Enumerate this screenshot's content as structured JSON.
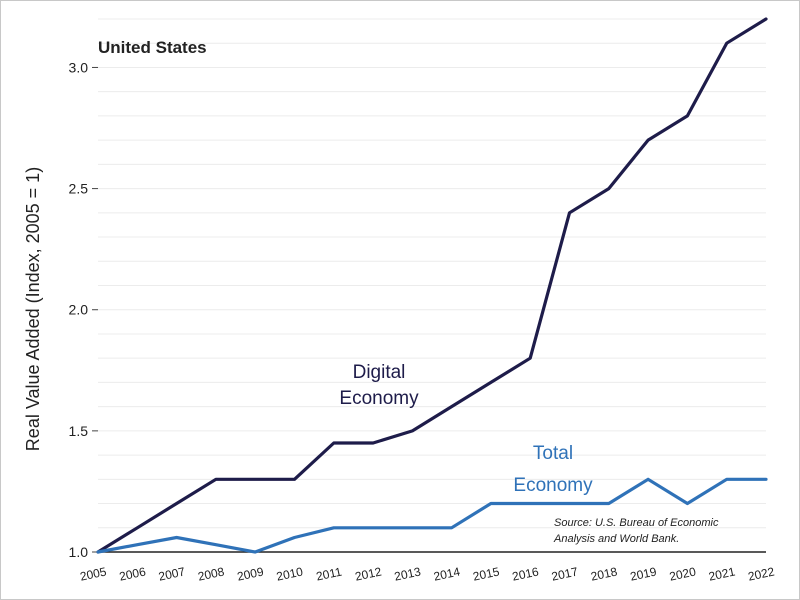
{
  "chart_data": {
    "type": "line",
    "title": "United States",
    "ylabel": "Real Value Added (Index, 2005 = 1)",
    "xlabel": "",
    "ylim": [
      1.0,
      3.2
    ],
    "yticks": [
      1.0,
      1.5,
      2.0,
      2.5,
      3.0
    ],
    "ytick_labels": [
      "1.0",
      "1.5",
      "2.0",
      "2.5",
      "3.0"
    ],
    "grid": true,
    "x": [
      "2005",
      "2006",
      "2007",
      "2008",
      "2009",
      "2010",
      "2011",
      "2012",
      "2013",
      "2014",
      "2015",
      "2016",
      "2017",
      "2018",
      "2019",
      "2020",
      "2021",
      "2022"
    ],
    "series": [
      {
        "label_lines": [
          "Digital",
          "Economy"
        ],
        "color": "#1e1c4a",
        "values": [
          1.0,
          1.1,
          1.2,
          1.3,
          1.3,
          1.3,
          1.45,
          1.45,
          1.5,
          1.6,
          1.7,
          1.8,
          2.4,
          2.5,
          2.7,
          2.8,
          3.1,
          3.2
        ]
      },
      {
        "label_lines": [
          "Total",
          "Economy"
        ],
        "color": "#2f72b8",
        "values": [
          1.0,
          1.03,
          1.06,
          1.03,
          1.0,
          1.06,
          1.1,
          1.1,
          1.1,
          1.1,
          1.2,
          1.2,
          1.2,
          1.2,
          1.3,
          1.2,
          1.3,
          1.3
        ]
      }
    ],
    "source_lines": [
      "Source: U.S. Bureau of Economic",
      "Analysis and World Bank."
    ]
  }
}
